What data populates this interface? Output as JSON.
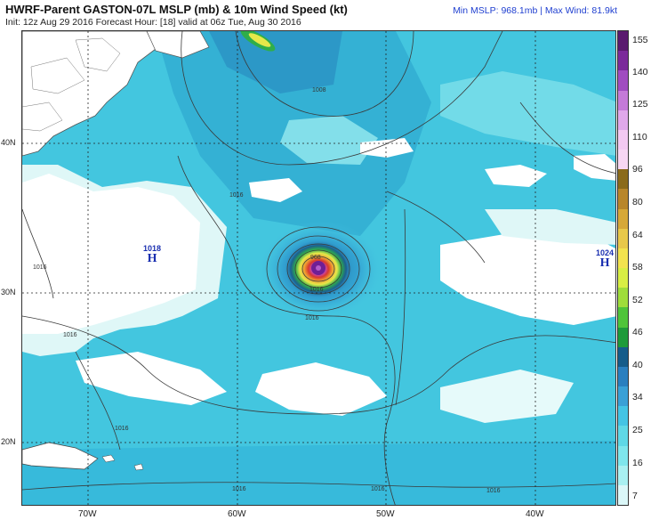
{
  "header": {
    "title": "HWRF-Parent GASTON-07L MSLP (mb) & 10m Wind Speed (kt)",
    "subtitle": "Init: 12z Aug 29 2016   Forecast Hour: [18]   valid at 06z Tue, Aug 30 2016",
    "stats": "Min MSLP: 968.1mb | Max Wind: 81.9kt"
  },
  "axes": {
    "lat_labels": [
      "40N",
      "30N",
      "20N"
    ],
    "lon_labels": [
      "70W",
      "60W",
      "50W",
      "40W"
    ]
  },
  "colorbar": {
    "labels": [
      "155",
      "140",
      "125",
      "110",
      "96",
      "80",
      "64",
      "58",
      "52",
      "46",
      "40",
      "34",
      "25",
      "16",
      "7"
    ],
    "colors": [
      "#5a1a6e",
      "#7b2a9a",
      "#a04cc0",
      "#c47ad8",
      "#e0a8ea",
      "#f2c9f1",
      "#f7d7f3",
      "#8a6a1a",
      "#b8862a",
      "#d6a838",
      "#e8c84a",
      "#f2e34e",
      "#d8ee44",
      "#9fdd3b",
      "#4fc43a",
      "#1e9a3a",
      "#155c8a",
      "#2a7fbf",
      "#3aa0d6",
      "#44c4e4",
      "#5fd8e6",
      "#7fe6ec",
      "#a9f0f1",
      "#dbf7f8"
    ]
  },
  "pressure_centers": [
    {
      "value": "1018",
      "letter": "H"
    },
    {
      "value": "1024",
      "letter": "H"
    }
  ],
  "storm": {
    "center_label": "968"
  },
  "isobar_labels": [
    "1008",
    "1016",
    "1016",
    "1016",
    "1016",
    "1016",
    "1016",
    "1016",
    "1016",
    "1016"
  ]
}
